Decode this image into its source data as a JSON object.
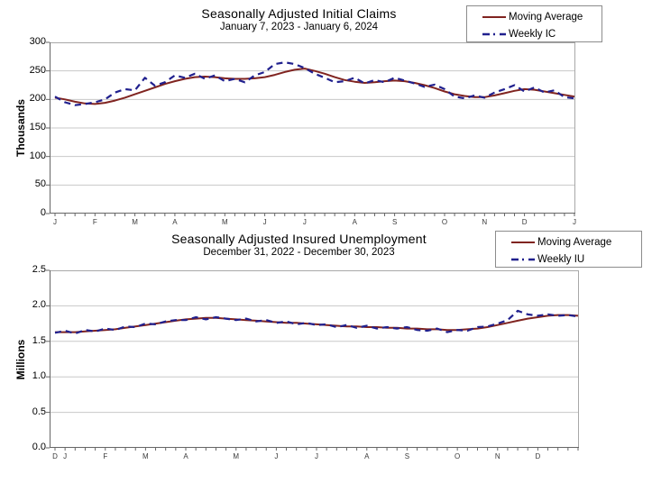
{
  "page": {
    "background": "#ffffff"
  },
  "colors": {
    "moving_average": "#802420",
    "weekly": "#20208e",
    "grid": "#c8c8c8",
    "plot_border": "#a8a8a8",
    "axis": "#666666",
    "tick_text": "#3a3a3a"
  },
  "chart_data": [
    {
      "type": "line",
      "title": "Seasonally Adjusted Initial Claims",
      "subtitle": "January 7, 2023 - January 6, 2024",
      "ylabel": "Thousands",
      "ylim": [
        0,
        300
      ],
      "ytick_step": 50,
      "ytick_labels": [
        "0",
        "50",
        "100",
        "150",
        "200",
        "250",
        "300"
      ],
      "grid": true,
      "legend_position": "top-right",
      "x_tick_labels": [
        "J",
        "F",
        "M",
        "A",
        "M",
        "J",
        "J",
        "A",
        "S",
        "O",
        "N",
        "D",
        "J"
      ],
      "x_tick_weeks": [
        0,
        4,
        8,
        12,
        17,
        21,
        25,
        30,
        34,
        39,
        43,
        47,
        52
      ],
      "series": [
        {
          "name": "Moving Average",
          "style": "solid",
          "color": "#802420",
          "values": [
            203,
            200,
            196,
            193,
            192,
            194,
            198,
            203,
            209,
            215,
            221,
            227,
            232,
            236,
            239,
            240,
            239,
            237,
            236,
            236,
            237,
            239,
            243,
            248,
            252,
            254,
            250,
            245,
            239,
            234,
            231,
            229,
            230,
            232,
            233,
            232,
            229,
            225,
            220,
            214,
            209,
            206,
            204,
            204,
            207,
            211,
            215,
            218,
            217,
            214,
            211,
            208,
            205
          ]
        },
        {
          "name": "Weekly IC",
          "style": "dashed",
          "color": "#20208e",
          "values": [
            205,
            195,
            190,
            192,
            195,
            200,
            212,
            218,
            216,
            238,
            224,
            230,
            242,
            238,
            245,
            236,
            242,
            232,
            236,
            230,
            242,
            248,
            262,
            265,
            262,
            255,
            245,
            238,
            230,
            232,
            238,
            228,
            234,
            230,
            238,
            233,
            228,
            222,
            226,
            218,
            205,
            202,
            207,
            203,
            212,
            218,
            225,
            214,
            221,
            212,
            216,
            204,
            202
          ]
        }
      ]
    },
    {
      "type": "line",
      "title": "Seasonally Adjusted Insured Unemployment",
      "subtitle": "December 31, 2022 - December 30, 2023",
      "ylabel": "Millions",
      "ylim": [
        0,
        2.5
      ],
      "ytick_step": 0.5,
      "ytick_labels": [
        "0.0",
        "0.5",
        "1.0",
        "1.5",
        "2.0",
        "2.5"
      ],
      "grid": true,
      "legend_position": "top-right",
      "x_tick_labels": [
        "D",
        "J",
        "F",
        "M",
        "A",
        "M",
        "J",
        "J",
        "A",
        "S",
        "O",
        "N",
        "D"
      ],
      "x_tick_weeks": [
        0,
        1,
        5,
        9,
        13,
        18,
        22,
        26,
        31,
        35,
        40,
        44,
        48
      ],
      "series": [
        {
          "name": "Moving Average",
          "style": "solid",
          "color": "#802420",
          "values": [
            1.63,
            1.63,
            1.63,
            1.64,
            1.65,
            1.66,
            1.67,
            1.69,
            1.71,
            1.73,
            1.75,
            1.77,
            1.79,
            1.81,
            1.82,
            1.83,
            1.83,
            1.82,
            1.81,
            1.8,
            1.79,
            1.78,
            1.77,
            1.76,
            1.76,
            1.75,
            1.74,
            1.73,
            1.72,
            1.71,
            1.71,
            1.7,
            1.7,
            1.69,
            1.69,
            1.68,
            1.68,
            1.67,
            1.67,
            1.66,
            1.66,
            1.67,
            1.68,
            1.7,
            1.73,
            1.76,
            1.79,
            1.82,
            1.84,
            1.86,
            1.87,
            1.87,
            1.86
          ]
        },
        {
          "name": "Weekly IU",
          "style": "dashed",
          "color": "#20208e",
          "values": [
            1.62,
            1.65,
            1.61,
            1.66,
            1.64,
            1.68,
            1.66,
            1.71,
            1.7,
            1.75,
            1.74,
            1.78,
            1.8,
            1.8,
            1.84,
            1.81,
            1.84,
            1.82,
            1.8,
            1.82,
            1.78,
            1.8,
            1.76,
            1.78,
            1.74,
            1.76,
            1.73,
            1.74,
            1.7,
            1.73,
            1.69,
            1.72,
            1.68,
            1.7,
            1.68,
            1.7,
            1.66,
            1.65,
            1.68,
            1.63,
            1.66,
            1.65,
            1.7,
            1.71,
            1.75,
            1.8,
            1.93,
            1.88,
            1.86,
            1.88,
            1.86,
            1.87,
            1.85
          ]
        }
      ]
    }
  ]
}
